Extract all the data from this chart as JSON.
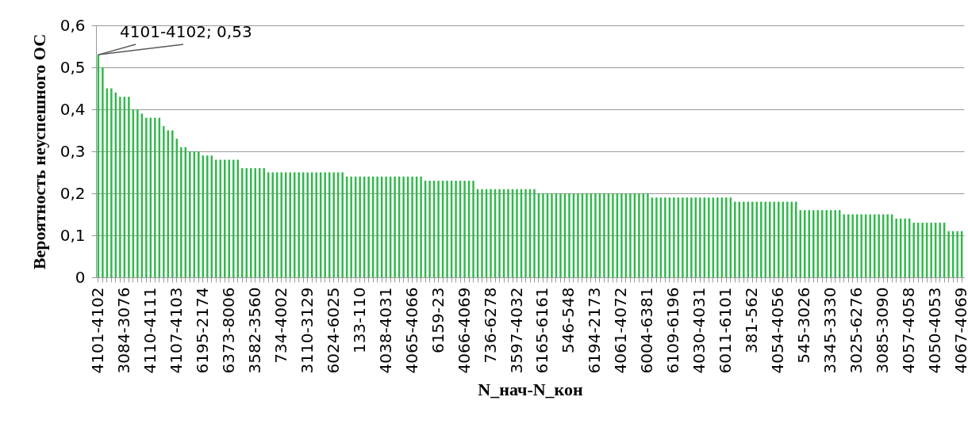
{
  "chart_data": {
    "type": "bar",
    "xlabel": "N_нач-N_кон",
    "ylabel": "Вероятность неуспешного ОС",
    "categories": [
      "4101-4102",
      null,
      null,
      null,
      null,
      null,
      "3084-3076",
      null,
      null,
      null,
      null,
      null,
      "4110-4111",
      null,
      null,
      null,
      null,
      null,
      "4107-4103",
      null,
      null,
      null,
      null,
      null,
      "6195-2174",
      null,
      null,
      null,
      null,
      null,
      "6373-8006",
      null,
      null,
      null,
      null,
      null,
      "3582-3560",
      null,
      null,
      null,
      null,
      null,
      "734-4002",
      null,
      null,
      null,
      null,
      null,
      "3110-3129",
      null,
      null,
      null,
      null,
      null,
      "6024-6025",
      null,
      null,
      null,
      null,
      null,
      "133-110",
      null,
      null,
      null,
      null,
      null,
      "4038-4031",
      null,
      null,
      null,
      null,
      null,
      "4065-4066",
      null,
      null,
      null,
      null,
      null,
      "6159-23",
      null,
      null,
      null,
      null,
      null,
      "4066-4069",
      null,
      null,
      null,
      null,
      null,
      "736-6278",
      null,
      null,
      null,
      null,
      null,
      "3597-4032",
      null,
      null,
      null,
      null,
      null,
      "6165-6161",
      null,
      null,
      null,
      null,
      null,
      "546-548",
      null,
      null,
      null,
      null,
      null,
      "6194-2173",
      null,
      null,
      null,
      null,
      null,
      "4061-4072",
      null,
      null,
      null,
      null,
      null,
      "6004-6381",
      null,
      null,
      null,
      null,
      null,
      "6109-6196",
      null,
      null,
      null,
      null,
      null,
      "4030-4031",
      null,
      null,
      null,
      null,
      null,
      "6011-6101",
      null,
      null,
      null,
      null,
      null,
      "381-562",
      null,
      null,
      null,
      null,
      null,
      "4054-4056",
      null,
      null,
      null,
      null,
      null,
      "545-3026",
      null,
      null,
      null,
      null,
      null,
      "3345-3330",
      null,
      null,
      null,
      null,
      null,
      "3025-6276",
      null,
      null,
      null,
      null,
      null,
      "3085-3090",
      null,
      null,
      null,
      null,
      null,
      "4057-4058",
      null,
      null,
      null,
      null,
      null,
      "4050-4053",
      null,
      null,
      null,
      null,
      null,
      "4067-4069"
    ],
    "values": [
      0.53,
      0.5,
      0.45,
      0.45,
      0.44,
      0.43,
      0.43,
      0.43,
      0.4,
      0.4,
      0.39,
      0.38,
      0.38,
      0.38,
      0.38,
      0.36,
      0.35,
      0.35,
      0.33,
      0.31,
      0.31,
      0.3,
      0.3,
      0.3,
      0.29,
      0.29,
      0.29,
      0.28,
      0.28,
      0.28,
      0.28,
      0.28,
      0.28,
      0.26,
      0.26,
      0.26,
      0.26,
      0.26,
      0.26,
      0.25,
      0.25,
      0.25,
      0.25,
      0.25,
      0.25,
      0.25,
      0.25,
      0.25,
      0.25,
      0.25,
      0.25,
      0.25,
      0.25,
      0.25,
      0.25,
      0.25,
      0.25,
      0.24,
      0.24,
      0.24,
      0.24,
      0.24,
      0.24,
      0.24,
      0.24,
      0.24,
      0.24,
      0.24,
      0.24,
      0.24,
      0.24,
      0.24,
      0.24,
      0.24,
      0.24,
      0.23,
      0.23,
      0.23,
      0.23,
      0.23,
      0.23,
      0.23,
      0.23,
      0.23,
      0.23,
      0.23,
      0.23,
      0.21,
      0.21,
      0.21,
      0.21,
      0.21,
      0.21,
      0.21,
      0.21,
      0.21,
      0.21,
      0.21,
      0.21,
      0.21,
      0.21,
      0.2,
      0.2,
      0.2,
      0.2,
      0.2,
      0.2,
      0.2,
      0.2,
      0.2,
      0.2,
      0.2,
      0.2,
      0.2,
      0.2,
      0.2,
      0.2,
      0.2,
      0.2,
      0.2,
      0.2,
      0.2,
      0.2,
      0.2,
      0.2,
      0.2,
      0.2,
      0.19,
      0.19,
      0.19,
      0.19,
      0.19,
      0.19,
      0.19,
      0.19,
      0.19,
      0.19,
      0.19,
      0.19,
      0.19,
      0.19,
      0.19,
      0.19,
      0.19,
      0.19,
      0.19,
      0.18,
      0.18,
      0.18,
      0.18,
      0.18,
      0.18,
      0.18,
      0.18,
      0.18,
      0.18,
      0.18,
      0.18,
      0.18,
      0.18,
      0.18,
      0.16,
      0.16,
      0.16,
      0.16,
      0.16,
      0.16,
      0.16,
      0.16,
      0.16,
      0.16,
      0.15,
      0.15,
      0.15,
      0.15,
      0.15,
      0.15,
      0.15,
      0.15,
      0.15,
      0.15,
      0.15,
      0.15,
      0.14,
      0.14,
      0.14,
      0.14,
      0.13,
      0.13,
      0.13,
      0.13,
      0.13,
      0.13,
      0.13,
      0.13,
      0.11,
      0.11,
      0.11,
      0.11
    ],
    "color": "#2fb94a",
    "ylim": [
      0,
      0.6
    ],
    "yticks": [
      0,
      {
        "value": 0.1,
        "label": "0,1"
      },
      {
        "value": 0.2,
        "label": "0,2"
      },
      {
        "value": 0.3,
        "label": "0,3"
      },
      {
        "value": 0.4,
        "label": "0,4"
      },
      {
        "value": 0.5,
        "label": "0,5"
      },
      {
        "value": 0.6,
        "label": "0,6"
      }
    ],
    "grid": "y",
    "annotations": [
      {
        "text": "4101-4102; 0,53",
        "x": "4101-4102",
        "y": 0.53
      }
    ]
  }
}
